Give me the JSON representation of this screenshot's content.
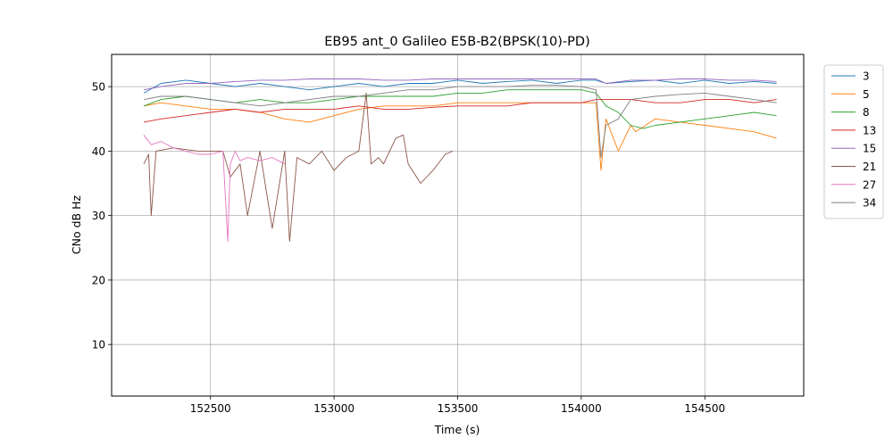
{
  "chart_data": {
    "type": "line",
    "title": "EB95 ant_0 Galileo E5B-B2(BPSK(10)-PD)",
    "xlabel": "Time (s)",
    "ylabel": "CNo dB Hz",
    "xlim": [
      152100,
      154900
    ],
    "ylim": [
      2,
      55
    ],
    "xticks": [
      152500,
      153000,
      153500,
      154000,
      154500
    ],
    "yticks": [
      10,
      20,
      30,
      40,
      50
    ],
    "grid": true,
    "legend_position": "outside-right",
    "series": [
      {
        "name": "3",
        "color": "#1f77b4",
        "x": [
          152230,
          152300,
          152400,
          152500,
          152600,
          152700,
          152800,
          152900,
          153000,
          153100,
          153200,
          153300,
          153400,
          153500,
          153600,
          153700,
          153800,
          153900,
          154000,
          154060,
          154100,
          154200,
          154300,
          154400,
          154500,
          154600,
          154700,
          154790
        ],
        "y": [
          49,
          50.5,
          51,
          50.5,
          50,
          50.5,
          50,
          49.5,
          50,
          50.5,
          50,
          50.5,
          50.5,
          51,
          50.5,
          50.8,
          51,
          50.5,
          51,
          51,
          50.5,
          50.8,
          51,
          50.5,
          51,
          50.5,
          50.8,
          50.5
        ]
      },
      {
        "name": "5",
        "color": "#ff7f0e",
        "x": [
          152230,
          152300,
          152400,
          152500,
          152600,
          152700,
          152800,
          152900,
          153000,
          153100,
          153200,
          153300,
          153400,
          153500,
          153600,
          153700,
          153800,
          153900,
          154000,
          154060,
          154080,
          154100,
          154150,
          154200,
          154220,
          154300,
          154400,
          154500,
          154600,
          154700,
          154790
        ],
        "y": [
          47,
          47.5,
          47,
          46.5,
          46.5,
          46,
          45,
          44.5,
          45.5,
          46.5,
          47,
          47,
          47,
          47.5,
          47.5,
          47.5,
          47.5,
          47.5,
          47.5,
          47.5,
          37,
          45,
          40,
          44,
          43,
          45,
          44.5,
          44,
          43.5,
          43,
          42
        ]
      },
      {
        "name": "8",
        "color": "#2ca02c",
        "x": [
          152230,
          152300,
          152400,
          152500,
          152600,
          152700,
          152800,
          152900,
          153000,
          153100,
          153200,
          153300,
          153400,
          153500,
          153600,
          153700,
          153800,
          153900,
          154000,
          154060,
          154100,
          154150,
          154200,
          154250,
          154300,
          154400,
          154500,
          154600,
          154700,
          154790
        ],
        "y": [
          47,
          48,
          48.5,
          48,
          47.5,
          48,
          47.5,
          47.5,
          48,
          48.5,
          48.5,
          48.5,
          48.5,
          49,
          49,
          49.5,
          49.5,
          49.5,
          49.5,
          49,
          47,
          46,
          44,
          43.5,
          44,
          44.5,
          45,
          45.5,
          46,
          45.5
        ]
      },
      {
        "name": "13",
        "color": "#d62728",
        "x": [
          152230,
          152300,
          152400,
          152500,
          152600,
          152700,
          152800,
          152900,
          153000,
          153100,
          153200,
          153300,
          153400,
          153500,
          153600,
          153700,
          153800,
          153900,
          154000,
          154060,
          154100,
          154200,
          154300,
          154400,
          154500,
          154600,
          154700,
          154790
        ],
        "y": [
          44.5,
          45,
          45.5,
          46,
          46.5,
          46,
          46.5,
          46.5,
          46.5,
          47,
          46.5,
          46.5,
          46.8,
          47,
          47,
          47,
          47.5,
          47.5,
          47.5,
          48,
          48,
          48,
          47.5,
          47.5,
          48,
          48,
          47.5,
          48
        ]
      },
      {
        "name": "15",
        "color": "#9467bd",
        "x": [
          152230,
          152300,
          152400,
          152500,
          152600,
          152700,
          152800,
          152900,
          153000,
          153100,
          153200,
          153300,
          153400,
          153500,
          153600,
          153700,
          153800,
          153900,
          154000,
          154060,
          154100,
          154200,
          154300,
          154400,
          154500,
          154600,
          154700,
          154790
        ],
        "y": [
          49.5,
          50,
          50.5,
          50.5,
          50.8,
          51,
          51,
          51.2,
          51.2,
          51.2,
          51,
          51,
          51.2,
          51.2,
          51.2,
          51.2,
          51.2,
          51.2,
          51.2,
          51.2,
          50.5,
          51,
          51,
          51.2,
          51.2,
          51,
          51,
          50.8
        ]
      },
      {
        "name": "21",
        "color": "#8c564b",
        "x": [
          152230,
          152250,
          152260,
          152280,
          152350,
          152450,
          152550,
          152580,
          152620,
          152650,
          152700,
          152750,
          152800,
          152820,
          152850,
          152900,
          152950,
          153000,
          153050,
          153100,
          153130,
          153150,
          153180,
          153200,
          153250,
          153280,
          153300,
          153350,
          153400,
          153450,
          153480
        ],
        "y": [
          38,
          39.5,
          30,
          40,
          40.5,
          40,
          40,
          36,
          38,
          30,
          40,
          28,
          40,
          26,
          39,
          38,
          40,
          37,
          39,
          40,
          49,
          38,
          39,
          38,
          42,
          42.5,
          38,
          35,
          37,
          39.5,
          40
        ]
      },
      {
        "name": "27",
        "color": "#e377c2",
        "x": [
          152230,
          152260,
          152300,
          152350,
          152400,
          152450,
          152500,
          152550,
          152570,
          152580,
          152600,
          152620,
          152650,
          152700,
          152750,
          152800
        ],
        "y": [
          42.5,
          41,
          41.5,
          40.5,
          40,
          39.5,
          39.5,
          40,
          26,
          38,
          40,
          38.5,
          39,
          38.5,
          39,
          38
        ]
      },
      {
        "name": "34",
        "color": "#7f7f7f",
        "x": [
          152230,
          152300,
          152400,
          152500,
          152600,
          152700,
          152800,
          152900,
          153000,
          153100,
          153200,
          153300,
          153400,
          153500,
          153600,
          153700,
          153800,
          153900,
          154000,
          154060,
          154080,
          154100,
          154150,
          154200,
          154300,
          154400,
          154500,
          154600,
          154700,
          154790
        ],
        "y": [
          48,
          48.5,
          48.5,
          48,
          47.5,
          47,
          47.5,
          48,
          48.5,
          48.5,
          49,
          49.5,
          49.5,
          50,
          50,
          50,
          50.2,
          50.2,
          50,
          49.5,
          39,
          44,
          45,
          48,
          48.5,
          48.8,
          49,
          48.5,
          48,
          47.5
        ]
      }
    ]
  }
}
